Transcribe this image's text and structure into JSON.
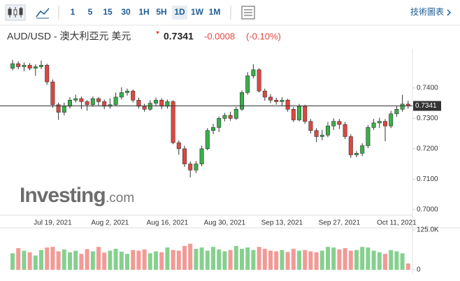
{
  "toolbar": {
    "intervals": [
      "1",
      "5",
      "15",
      "30",
      "1H",
      "5H",
      "1D",
      "1W",
      "1M"
    ],
    "active": "1D",
    "link": "技術圖表"
  },
  "header": {
    "symbol": "AUD/USD - 澳大利亞元 美元",
    "price": 0.7341,
    "change": -0.0008,
    "change_pct": "(-0.10%)"
  },
  "watermark": {
    "brand": "Investing",
    "domain": ".com"
  },
  "chart_data": {
    "type": "candlestick",
    "categories": [
      null,
      null,
      null,
      null,
      null,
      null,
      null,
      "Jul 19, 2021",
      null,
      null,
      null,
      null,
      null,
      null,
      null,
      null,
      null,
      "Aug 2, 2021",
      null,
      null,
      null,
      null,
      null,
      null,
      null,
      null,
      null,
      "Aug 16, 2021",
      null,
      null,
      null,
      null,
      null,
      null,
      null,
      null,
      null,
      "Aug 30, 2021",
      null,
      null,
      null,
      null,
      null,
      null,
      null,
      null,
      null,
      "Sep 13, 2021",
      null,
      null,
      null,
      null,
      null,
      null,
      null,
      null,
      null,
      "Sep 27, 2021",
      null,
      null,
      null,
      null,
      null,
      null,
      null,
      null,
      null,
      "Oct 11, 2021",
      null,
      null
    ],
    "open": [
      0.7465,
      0.748,
      0.747,
      0.7475,
      0.7465,
      0.747,
      0.7475,
      0.742,
      0.7345,
      0.732,
      0.734,
      0.736,
      0.7365,
      0.7355,
      0.7345,
      0.7365,
      0.7355,
      0.734,
      0.7345,
      0.737,
      0.7385,
      0.739,
      0.736,
      0.734,
      0.733,
      0.735,
      0.736,
      0.734,
      0.7355,
      0.722,
      0.72,
      0.715,
      0.713,
      0.715,
      0.72,
      0.726,
      0.727,
      0.73,
      0.731,
      0.73,
      0.733,
      0.7385,
      0.744,
      0.746,
      0.739,
      0.737,
      0.736,
      0.7355,
      0.736,
      0.733,
      0.7295,
      0.734,
      0.729,
      0.726,
      0.724,
      0.7245,
      0.7275,
      0.729,
      0.728,
      0.724,
      0.718,
      0.7185,
      0.721,
      0.727,
      0.7285,
      0.729,
      0.7275,
      0.7315,
      0.733,
      0.7347
    ],
    "high": [
      0.7492,
      0.7488,
      0.7484,
      0.7482,
      0.7478,
      0.749,
      0.748,
      0.7428,
      0.7352,
      0.7352,
      0.737,
      0.7378,
      0.7372,
      0.736,
      0.7372,
      0.737,
      0.7362,
      0.7366,
      0.7385,
      0.7402,
      0.7398,
      0.7395,
      0.7368,
      0.7348,
      0.736,
      0.7368,
      0.7366,
      0.7362,
      0.736,
      0.7228,
      0.721,
      0.7158,
      0.716,
      0.721,
      0.7268,
      0.7282,
      0.7306,
      0.7318,
      0.7322,
      0.7338,
      0.7392,
      0.7452,
      0.7478,
      0.7465,
      0.7398,
      0.738,
      0.7368,
      0.737,
      0.7365,
      0.7338,
      0.7348,
      0.7345,
      0.7298,
      0.7268,
      0.7262,
      0.7288,
      0.73,
      0.7298,
      0.7288,
      0.7248,
      0.7192,
      0.7218,
      0.7278,
      0.7298,
      0.7302,
      0.7298,
      0.7325,
      0.7342,
      0.7378,
      0.7358
    ],
    "low": [
      0.7458,
      0.7462,
      0.7455,
      0.7458,
      0.744,
      0.7462,
      0.741,
      0.7335,
      0.7295,
      0.731,
      0.7332,
      0.7352,
      0.733,
      0.7325,
      0.7338,
      0.734,
      0.733,
      0.7332,
      0.734,
      0.7362,
      0.7375,
      0.7352,
      0.7332,
      0.7322,
      0.7325,
      0.7342,
      0.733,
      0.7332,
      0.7215,
      0.718,
      0.714,
      0.7106,
      0.712,
      0.7142,
      0.7195,
      0.7248,
      0.7255,
      0.729,
      0.7292,
      0.7295,
      0.7325,
      0.7378,
      0.7432,
      0.7385,
      0.7358,
      0.735,
      0.7345,
      0.7342,
      0.7322,
      0.7288,
      0.729,
      0.7282,
      0.725,
      0.7222,
      0.7228,
      0.7238,
      0.7262,
      0.7265,
      0.7232,
      0.717,
      0.7172,
      0.7176,
      0.7202,
      0.7262,
      0.7268,
      0.7225,
      0.7268,
      0.7305,
      0.7322,
      0.7332
    ],
    "close": [
      0.748,
      0.747,
      0.7475,
      0.7465,
      0.747,
      0.7475,
      0.742,
      0.7345,
      0.732,
      0.734,
      0.736,
      0.7365,
      0.7355,
      0.7345,
      0.7365,
      0.7355,
      0.734,
      0.7345,
      0.737,
      0.7385,
      0.739,
      0.736,
      0.734,
      0.733,
      0.735,
      0.736,
      0.734,
      0.7355,
      0.722,
      0.72,
      0.715,
      0.713,
      0.715,
      0.72,
      0.726,
      0.727,
      0.73,
      0.731,
      0.73,
      0.733,
      0.7385,
      0.744,
      0.746,
      0.739,
      0.737,
      0.736,
      0.7355,
      0.736,
      0.733,
      0.7295,
      0.734,
      0.729,
      0.726,
      0.724,
      0.7245,
      0.7275,
      0.729,
      0.728,
      0.724,
      0.718,
      0.7185,
      0.721,
      0.727,
      0.7285,
      0.729,
      0.7275,
      0.7315,
      0.733,
      0.7347,
      0.7341
    ],
    "volume": [
      52000,
      68000,
      60000,
      55000,
      45000,
      62000,
      70000,
      72000,
      58000,
      64000,
      55000,
      60000,
      50000,
      65000,
      58000,
      72000,
      54000,
      60000,
      66000,
      57000,
      50000,
      62000,
      60000,
      64000,
      52000,
      58000,
      55000,
      70000,
      62000,
      60000,
      75000,
      82000,
      66000,
      70000,
      60000,
      72000,
      64000,
      58000,
      62000,
      75000,
      66000,
      70000,
      62000,
      72000,
      66000,
      60000,
      58000,
      62000,
      56000,
      66000,
      60000,
      62000,
      58000,
      55000,
      60000,
      72000,
      70000,
      64000,
      68000,
      60000,
      62000,
      72000,
      70000,
      60000,
      55000,
      50000,
      62000,
      58000,
      52000,
      20000
    ],
    "ylim": [
      0.6988,
      0.7517
    ],
    "yticks": [
      {
        "value": 0.7,
        "label": "0.7000"
      },
      {
        "value": 0.71,
        "label": "0.7100"
      },
      {
        "value": 0.72,
        "label": "0.7200"
      },
      {
        "value": 0.73,
        "label": "0.7300"
      },
      {
        "value": 0.74,
        "label": "0.7400"
      }
    ],
    "volume_ylim": [
      0,
      125000
    ],
    "volume_ticks": [
      {
        "value": 0,
        "label": "0"
      },
      {
        "value": 125000,
        "label": "125.0K"
      }
    ],
    "up_color": "#3aae49",
    "down_color": "#e0463f",
    "volume_up_color": "#86d08f",
    "volume_down_color": "#f29a95"
  }
}
